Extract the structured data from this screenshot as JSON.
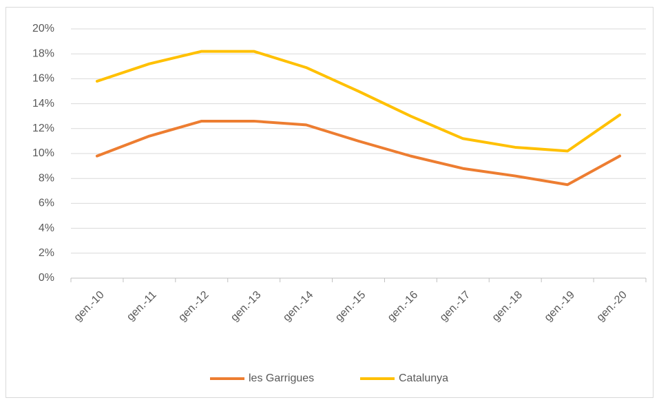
{
  "chart_data": {
    "type": "line",
    "categories": [
      "gen.-10",
      "gen.-11",
      "gen.-12",
      "gen.-13",
      "gen.-14",
      "gen.-15",
      "gen.-16",
      "gen.-17",
      "gen.-18",
      "gen.-19",
      "gen.-20"
    ],
    "series": [
      {
        "name": "les Garrigues",
        "color": "#ed7d31",
        "values": [
          9.8,
          11.4,
          12.6,
          12.6,
          12.3,
          11.0,
          9.8,
          8.8,
          8.2,
          7.5,
          9.8
        ]
      },
      {
        "name": "Catalunya",
        "color": "#ffc000",
        "values": [
          15.8,
          17.2,
          18.2,
          18.2,
          16.9,
          15.0,
          13.0,
          11.2,
          10.5,
          10.2,
          13.1
        ]
      }
    ],
    "ylim": [
      0,
      20
    ],
    "yticks": [
      {
        "value": 0,
        "label": "0%"
      },
      {
        "value": 2,
        "label": "2%"
      },
      {
        "value": 4,
        "label": "4%"
      },
      {
        "value": 6,
        "label": "6%"
      },
      {
        "value": 8,
        "label": "8%"
      },
      {
        "value": 10,
        "label": "10%"
      },
      {
        "value": 12,
        "label": "12%"
      },
      {
        "value": 14,
        "label": "14%"
      },
      {
        "value": 16,
        "label": "16%"
      },
      {
        "value": 18,
        "label": "18%"
      },
      {
        "value": 20,
        "label": "20%"
      }
    ],
    "grid": true,
    "legend": "bottom"
  }
}
